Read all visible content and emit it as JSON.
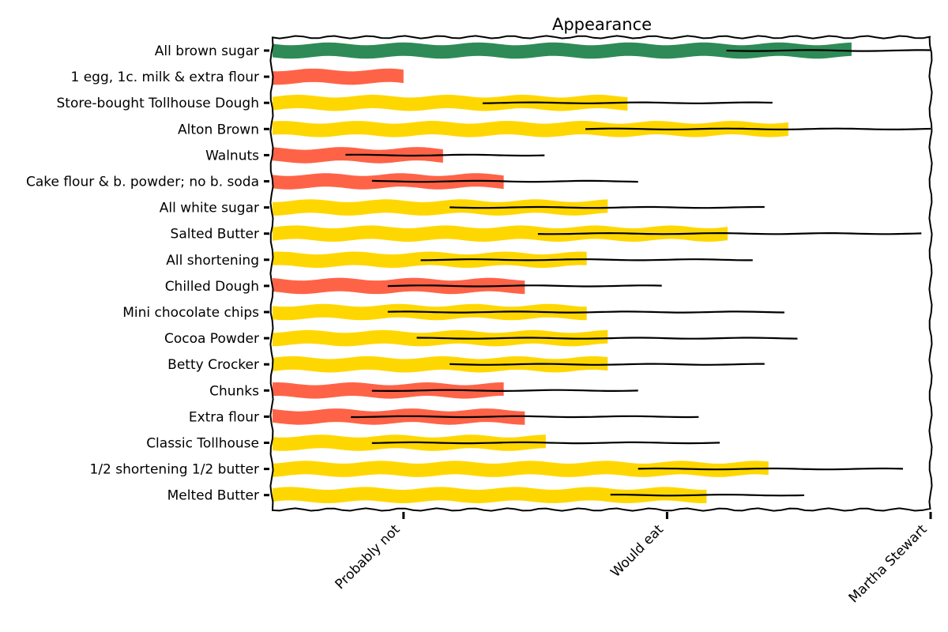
{
  "chart_data": {
    "type": "bar",
    "orientation": "horizontal",
    "title": "Appearance",
    "xlabel": "",
    "ylabel": "",
    "xlim": [
      0,
      5
    ],
    "x_ticks": [
      {
        "value": 1,
        "label": "Probably not"
      },
      {
        "value": 3,
        "label": "Would eat"
      },
      {
        "value": 5,
        "label": "Martha Stewart"
      }
    ],
    "grid": false,
    "colors": {
      "red": "#ff6347",
      "yellow": "#ffd700",
      "green": "#2e8b57",
      "error": "#000000"
    },
    "categories": [
      "All brown sugar",
      "1 egg, 1c. milk & extra flour",
      "Store-bought Tollhouse Dough",
      "Alton Brown",
      "Walnuts",
      "Cake flour & b. powder; no b. soda",
      "All white sugar",
      "Salted Butter",
      "All shortening",
      "Chilled Dough",
      "Mini chocolate chips",
      "Cocoa Powder",
      "Betty Crocker",
      "Chunks",
      "Extra flour",
      "Classic Tollhouse",
      "1/2 shortening 1/2 butter",
      "Melted Butter"
    ],
    "bars": [
      {
        "value": 4.4,
        "err_low": 3.45,
        "err_high": 5.0,
        "color": "green"
      },
      {
        "value": 1.0,
        "err_low": null,
        "err_high": null,
        "color": "red"
      },
      {
        "value": 2.7,
        "err_low": 1.6,
        "err_high": 3.8,
        "color": "yellow"
      },
      {
        "value": 3.92,
        "err_low": 2.38,
        "err_high": 5.0,
        "color": "yellow"
      },
      {
        "value": 1.3,
        "err_low": 0.56,
        "err_high": 2.07,
        "color": "red"
      },
      {
        "value": 1.76,
        "err_low": 0.76,
        "err_high": 2.78,
        "color": "red"
      },
      {
        "value": 2.55,
        "err_low": 1.35,
        "err_high": 3.74,
        "color": "yellow"
      },
      {
        "value": 3.46,
        "err_low": 2.02,
        "err_high": 4.93,
        "color": "yellow"
      },
      {
        "value": 2.39,
        "err_low": 1.13,
        "err_high": 3.65,
        "color": "yellow"
      },
      {
        "value": 1.92,
        "err_low": 0.88,
        "err_high": 2.96,
        "color": "red"
      },
      {
        "value": 2.39,
        "err_low": 0.88,
        "err_high": 3.89,
        "color": "yellow"
      },
      {
        "value": 2.55,
        "err_low": 1.1,
        "err_high": 3.99,
        "color": "yellow"
      },
      {
        "value": 2.55,
        "err_low": 1.35,
        "err_high": 3.74,
        "color": "yellow"
      },
      {
        "value": 1.76,
        "err_low": 0.76,
        "err_high": 2.78,
        "color": "red"
      },
      {
        "value": 1.92,
        "err_low": 0.6,
        "err_high": 3.24,
        "color": "red"
      },
      {
        "value": 2.08,
        "err_low": 0.76,
        "err_high": 3.4,
        "color": "yellow"
      },
      {
        "value": 3.77,
        "err_low": 2.78,
        "err_high": 4.79,
        "color": "yellow"
      },
      {
        "value": 3.3,
        "err_low": 2.57,
        "err_high": 4.04,
        "color": "yellow"
      }
    ]
  }
}
